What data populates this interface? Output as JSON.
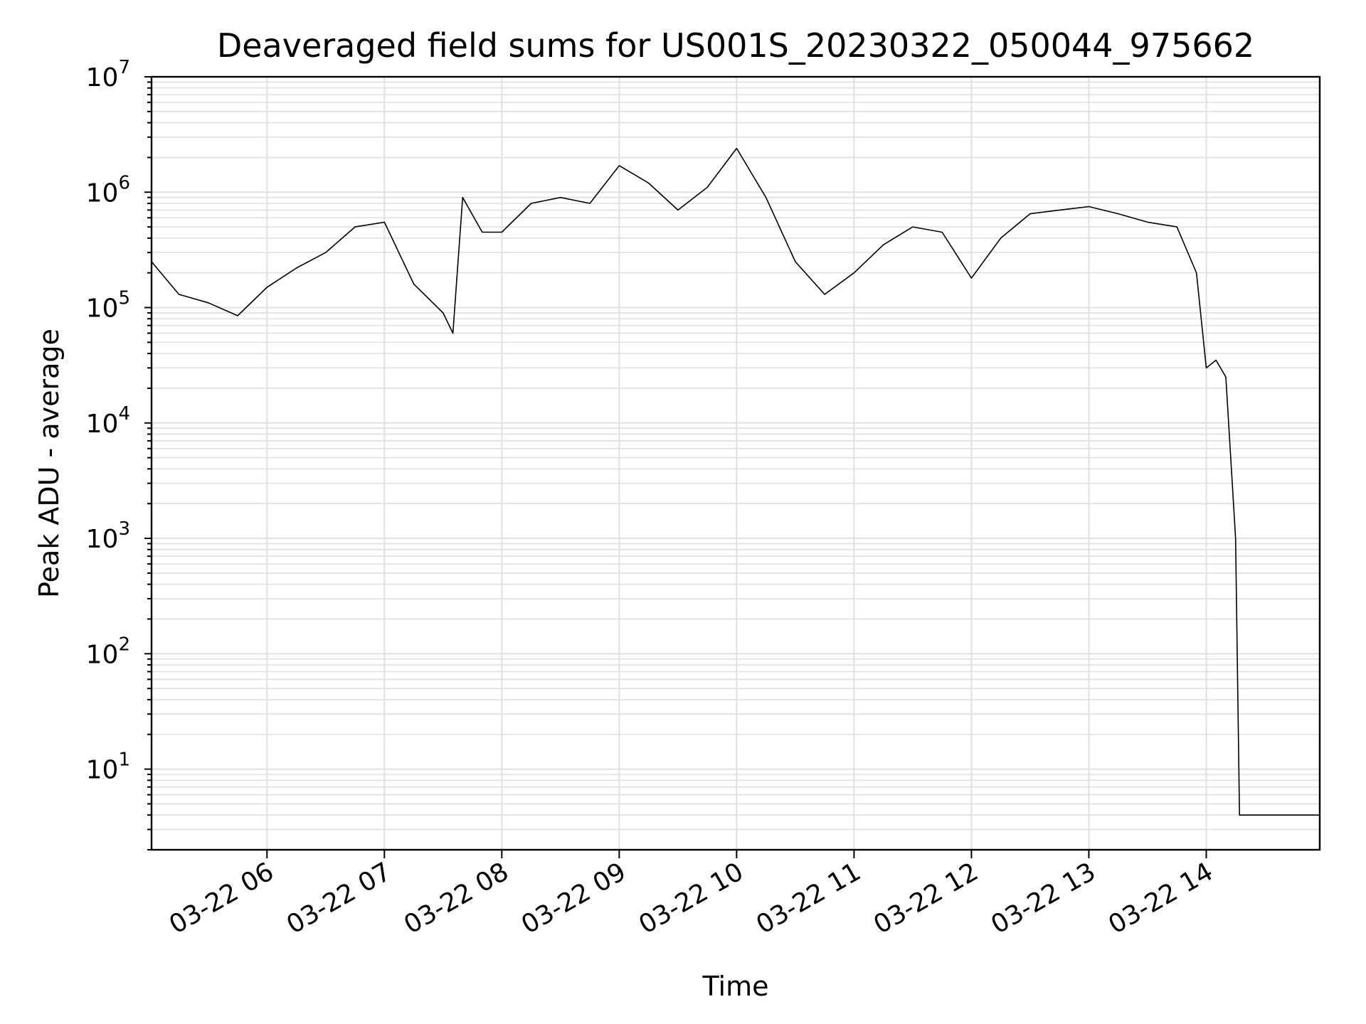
{
  "chart_data": {
    "type": "line",
    "title": "Deaveraged field sums for US001S_20230322_050044_975662",
    "xlabel": "Time",
    "ylabel": "Peak ADU - average",
    "yscale": "log",
    "ylim": [
      2,
      10000000
    ],
    "xlim": [
      "03-22 05:01",
      "03-22 14:58"
    ],
    "grid": true,
    "line_color": "#000000",
    "grid_color": "#e0e0e0",
    "x_tick_labels": [
      "03-22 06",
      "03-22 07",
      "03-22 08",
      "03-22 09",
      "03-22 10",
      "03-22 11",
      "03-22 12",
      "03-22 13",
      "03-22 14"
    ],
    "y_tick_labels": [
      {
        "base": "10",
        "exp": "1"
      },
      {
        "base": "10",
        "exp": "2"
      },
      {
        "base": "10",
        "exp": "3"
      },
      {
        "base": "10",
        "exp": "4"
      },
      {
        "base": "10",
        "exp": "5"
      },
      {
        "base": "10",
        "exp": "6"
      },
      {
        "base": "10",
        "exp": "7"
      }
    ],
    "series": [
      {
        "x": [
          "03-22 05:01",
          "03-22 05:15",
          "03-22 05:30",
          "03-22 05:45",
          "03-22 06:00",
          "03-22 06:15",
          "03-22 06:30",
          "03-22 06:45",
          "03-22 07:00",
          "03-22 07:15",
          "03-22 07:30",
          "03-22 07:35",
          "03-22 07:40",
          "03-22 07:50",
          "03-22 08:00",
          "03-22 08:15",
          "03-22 08:30",
          "03-22 08:45",
          "03-22 09:00",
          "03-22 09:15",
          "03-22 09:30",
          "03-22 09:45",
          "03-22 10:00",
          "03-22 10:15",
          "03-22 10:30",
          "03-22 10:45",
          "03-22 11:00",
          "03-22 11:15",
          "03-22 11:30",
          "03-22 11:45",
          "03-22 12:00",
          "03-22 12:15",
          "03-22 12:30",
          "03-22 12:45",
          "03-22 13:00",
          "03-22 13:15",
          "03-22 13:30",
          "03-22 13:45",
          "03-22 13:55",
          "03-22 14:00",
          "03-22 14:05",
          "03-22 14:10",
          "03-22 14:15",
          "03-22 14:17",
          "03-22 14:18",
          "03-22 14:30",
          "03-22 14:45",
          "03-22 14:58"
        ],
        "y": [
          250000,
          130000,
          110000,
          85000,
          150000,
          220000,
          300000,
          500000,
          550000,
          160000,
          90000,
          60000,
          900000,
          450000,
          450000,
          800000,
          900000,
          800000,
          1700000,
          1200000,
          700000,
          1100000,
          2400000,
          900000,
          250000,
          130000,
          200000,
          350000,
          500000,
          450000,
          180000,
          400000,
          650000,
          700000,
          750000,
          650000,
          550000,
          500000,
          200000,
          30000,
          35000,
          25000,
          1000,
          4,
          4,
          4,
          4,
          4
        ]
      }
    ]
  }
}
